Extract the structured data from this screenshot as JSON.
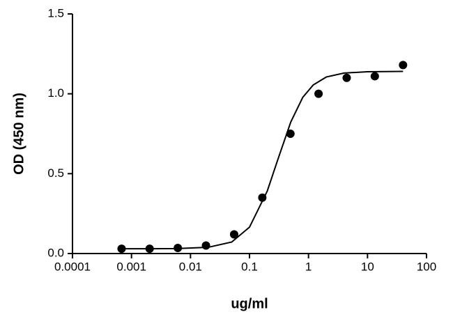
{
  "chart_data": {
    "type": "scatter",
    "xlabel": "ug/ml",
    "ylabel": "OD (450 nm)",
    "xscale": "log",
    "xlim": [
      0.0001,
      100
    ],
    "xticks": [
      0.0001,
      0.001,
      0.01,
      0.1,
      1,
      10,
      100
    ],
    "ylim": [
      0,
      1.5
    ],
    "yticks": [
      {
        "value": 0,
        "label": "0.0"
      },
      0.5,
      {
        "value": 1,
        "label": "1.0"
      },
      1.5
    ],
    "grid": false,
    "series": [
      {
        "type": "line",
        "color": "#000000",
        "x": [
          0.0007,
          0.002,
          0.006,
          0.02,
          0.05,
          0.1,
          0.2,
          0.3,
          0.5,
          0.8,
          1.2,
          2,
          4,
          10,
          40
        ],
        "values": [
          0.03,
          0.03,
          0.031,
          0.039,
          0.072,
          0.165,
          0.391,
          0.585,
          0.823,
          0.978,
          1.055,
          1.105,
          1.13,
          1.138,
          1.14
        ]
      },
      {
        "type": "scatter",
        "color": "#000000",
        "x": [
          0.00068,
          0.00203,
          0.0061,
          0.0183,
          0.0549,
          0.165,
          0.494,
          1.48,
          4.44,
          13.3,
          40
        ],
        "values": [
          0.03,
          0.03,
          0.035,
          0.05,
          0.12,
          0.35,
          0.75,
          1.0,
          1.1,
          1.11,
          1.18
        ]
      }
    ]
  }
}
